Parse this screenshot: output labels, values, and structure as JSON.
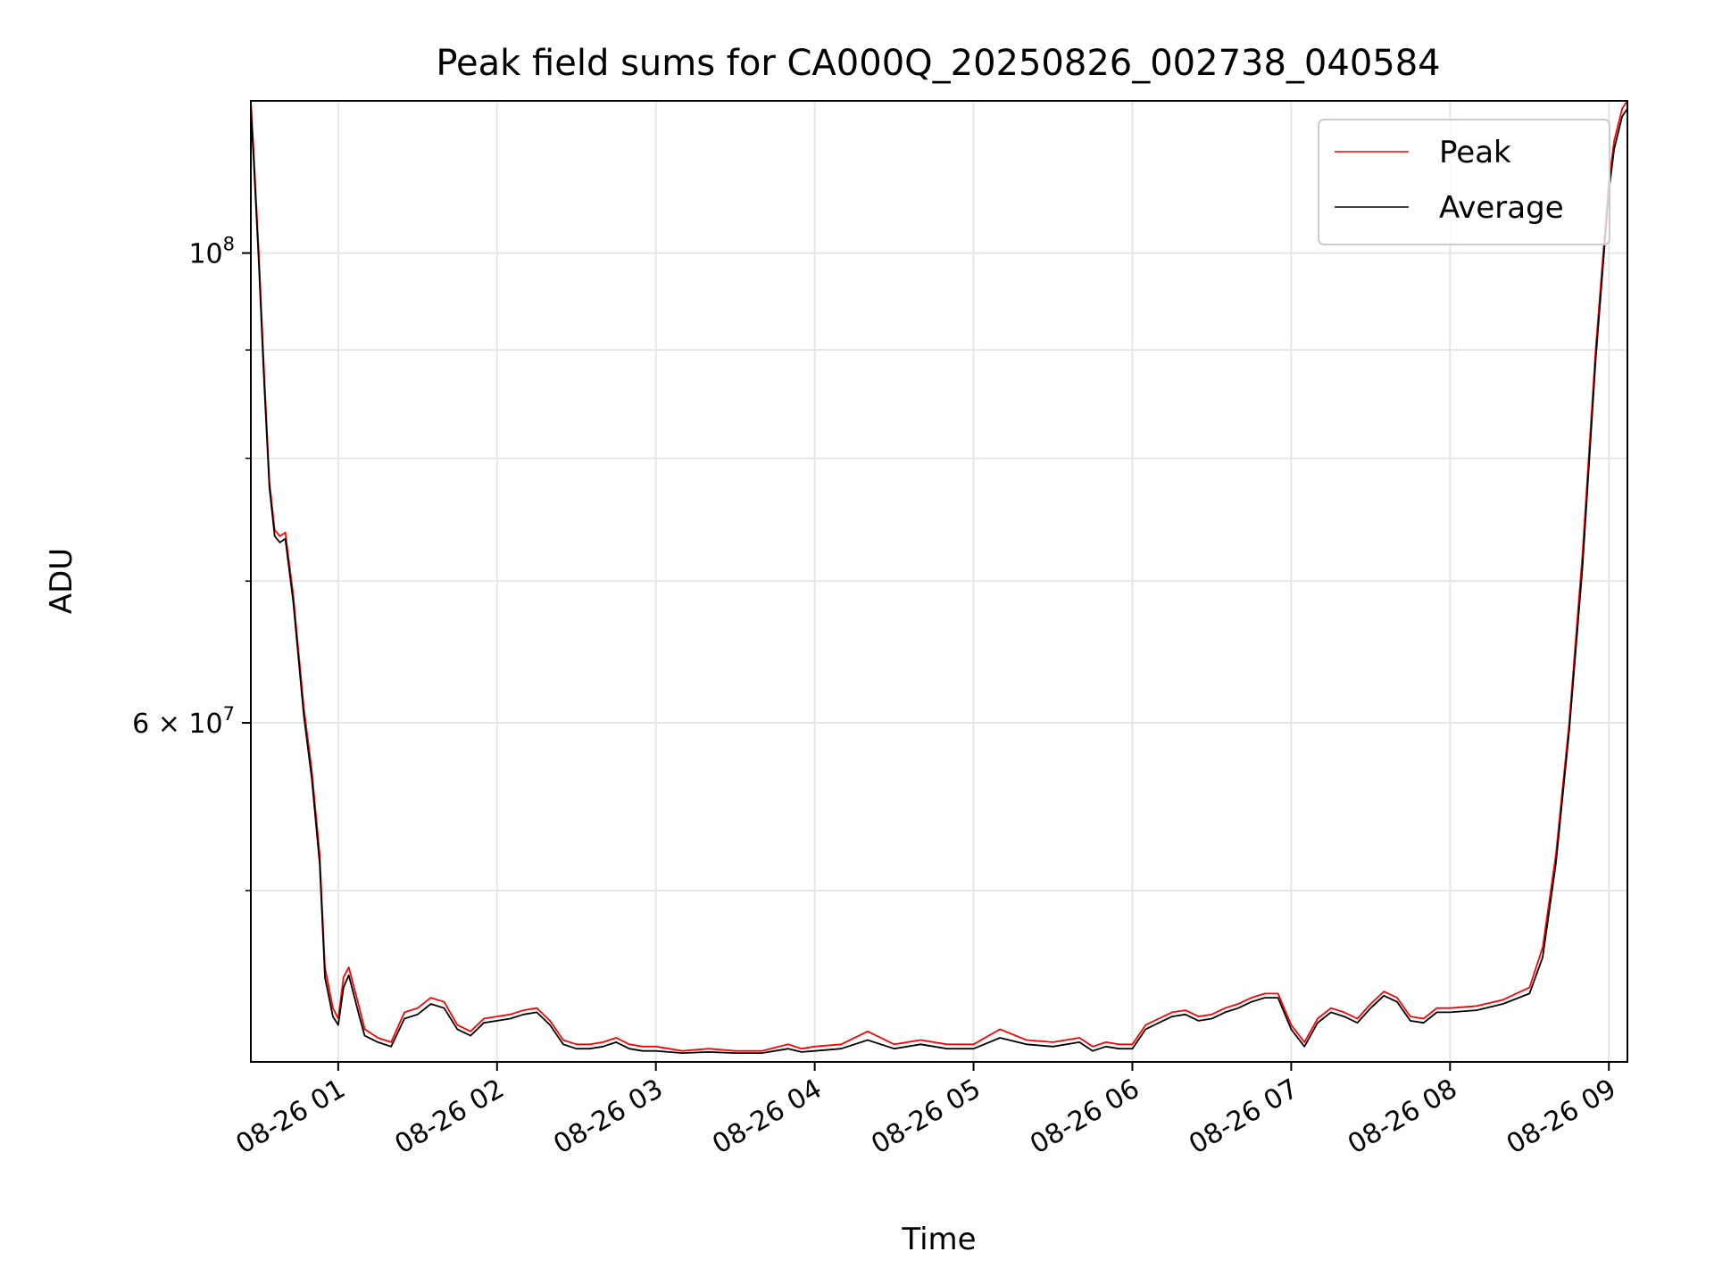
{
  "chart_data": {
    "type": "line",
    "title": "Peak field sums for CA000Q_20250826_002738_040584",
    "xlabel": "Time",
    "ylabel": "ADU",
    "yscale": "log",
    "grid": true,
    "legend_position": "top-right",
    "x_ticks": [
      {
        "value": "2025-08-26 01:00",
        "label": "08-26 01"
      },
      {
        "value": "2025-08-26 02:00",
        "label": "08-26 02"
      },
      {
        "value": "2025-08-26 03:00",
        "label": "08-26 03"
      },
      {
        "value": "2025-08-26 04:00",
        "label": "08-26 04"
      },
      {
        "value": "2025-08-26 05:00",
        "label": "08-26 05"
      },
      {
        "value": "2025-08-26 06:00",
        "label": "08-26 06"
      },
      {
        "value": "2025-08-26 07:00",
        "label": "08-26 07"
      },
      {
        "value": "2025-08-26 08:00",
        "label": "08-26 08"
      },
      {
        "value": "2025-08-26 09:00",
        "label": "08-26 09"
      }
    ],
    "y_major_ticks": [
      {
        "value": 100000000,
        "label_base": "10",
        "label_exp": "8",
        "label_prefix": ""
      },
      {
        "value": 60000000,
        "label_base": "10",
        "label_exp": "7",
        "label_prefix": "6 × "
      }
    ],
    "y_minor_ticks": [
      50000000,
      70000000,
      80000000,
      90000000
    ],
    "ylim": [
      41500000,
      118000000
    ],
    "xlim": [
      "2025-08-26 00:27",
      "2025-08-26 09:07"
    ],
    "series": [
      {
        "name": "Peak",
        "color": "#ff0000",
        "x": [
          "2025-08-26 00:27",
          "2025-08-26 00:28",
          "2025-08-26 00:30",
          "2025-08-26 00:32",
          "2025-08-26 00:34",
          "2025-08-26 00:36",
          "2025-08-26 00:38",
          "2025-08-26 00:40",
          "2025-08-26 00:43",
          "2025-08-26 00:47",
          "2025-08-26 00:50",
          "2025-08-26 00:53",
          "2025-08-26 00:55",
          "2025-08-26 00:58",
          "2025-08-26 01:00",
          "2025-08-26 01:02",
          "2025-08-26 01:04",
          "2025-08-26 01:06",
          "2025-08-26 01:08",
          "2025-08-26 01:10",
          "2025-08-26 01:15",
          "2025-08-26 01:20",
          "2025-08-26 01:25",
          "2025-08-26 01:30",
          "2025-08-26 01:35",
          "2025-08-26 01:40",
          "2025-08-26 01:45",
          "2025-08-26 01:50",
          "2025-08-26 01:55",
          "2025-08-26 02:00",
          "2025-08-26 02:05",
          "2025-08-26 02:10",
          "2025-08-26 02:15",
          "2025-08-26 02:20",
          "2025-08-26 02:25",
          "2025-08-26 02:30",
          "2025-08-26 02:35",
          "2025-08-26 02:40",
          "2025-08-26 02:45",
          "2025-08-26 02:50",
          "2025-08-26 02:55",
          "2025-08-26 03:00",
          "2025-08-26 03:05",
          "2025-08-26 03:10",
          "2025-08-26 03:20",
          "2025-08-26 03:30",
          "2025-08-26 03:40",
          "2025-08-26 03:50",
          "2025-08-26 03:55",
          "2025-08-26 04:00",
          "2025-08-26 04:10",
          "2025-08-26 04:20",
          "2025-08-26 04:30",
          "2025-08-26 04:40",
          "2025-08-26 04:50",
          "2025-08-26 05:00",
          "2025-08-26 05:10",
          "2025-08-26 05:20",
          "2025-08-26 05:30",
          "2025-08-26 05:40",
          "2025-08-26 05:45",
          "2025-08-26 05:50",
          "2025-08-26 05:55",
          "2025-08-26 06:00",
          "2025-08-26 06:05",
          "2025-08-26 06:10",
          "2025-08-26 06:15",
          "2025-08-26 06:20",
          "2025-08-26 06:25",
          "2025-08-26 06:30",
          "2025-08-26 06:35",
          "2025-08-26 06:40",
          "2025-08-26 06:45",
          "2025-08-26 06:50",
          "2025-08-26 06:55",
          "2025-08-26 07:00",
          "2025-08-26 07:05",
          "2025-08-26 07:10",
          "2025-08-26 07:15",
          "2025-08-26 07:20",
          "2025-08-26 07:25",
          "2025-08-26 07:30",
          "2025-08-26 07:35",
          "2025-08-26 07:40",
          "2025-08-26 07:45",
          "2025-08-26 07:50",
          "2025-08-26 07:55",
          "2025-08-26 08:00",
          "2025-08-26 08:10",
          "2025-08-26 08:20",
          "2025-08-26 08:30",
          "2025-08-26 08:35",
          "2025-08-26 08:40",
          "2025-08-26 08:45",
          "2025-08-26 08:50",
          "2025-08-26 08:55",
          "2025-08-26 09:00",
          "2025-08-26 09:02",
          "2025-08-26 09:05",
          "2025-08-26 09:07"
        ],
        "y": [
          118000000,
          112000000,
          100000000,
          88000000,
          78000000,
          74000000,
          73500000,
          73800000,
          69000000,
          61000000,
          57000000,
          52000000,
          46000000,
          44000000,
          43500000,
          45500000,
          46000000,
          45000000,
          44000000,
          43000000,
          42600000,
          42400000,
          43800000,
          44000000,
          44500000,
          44300000,
          43200000,
          42900000,
          43500000,
          43600000,
          43700000,
          43900000,
          44000000,
          43400000,
          42500000,
          42300000,
          42300000,
          42400000,
          42600000,
          42300000,
          42200000,
          42200000,
          42100000,
          42000000,
          42100000,
          42000000,
          42000000,
          42300000,
          42100000,
          42200000,
          42300000,
          42900000,
          42300000,
          42500000,
          42300000,
          42300000,
          43000000,
          42500000,
          42400000,
          42600000,
          42200000,
          42400000,
          42300000,
          42300000,
          43200000,
          43500000,
          43800000,
          43900000,
          43600000,
          43700000,
          44000000,
          44200000,
          44500000,
          44700000,
          44700000,
          43200000,
          42400000,
          43500000,
          44000000,
          43800000,
          43500000,
          44200000,
          44800000,
          44500000,
          43600000,
          43500000,
          44000000,
          44000000,
          44100000,
          44400000,
          45000000,
          47000000,
          52000000,
          60000000,
          72000000,
          90000000,
          108000000,
          113000000,
          117000000,
          118000000
        ]
      },
      {
        "name": "Average",
        "color": "#000000",
        "x": [
          "2025-08-26 00:27",
          "2025-08-26 00:28",
          "2025-08-26 00:30",
          "2025-08-26 00:32",
          "2025-08-26 00:34",
          "2025-08-26 00:36",
          "2025-08-26 00:38",
          "2025-08-26 00:40",
          "2025-08-26 00:43",
          "2025-08-26 00:47",
          "2025-08-26 00:50",
          "2025-08-26 00:53",
          "2025-08-26 00:55",
          "2025-08-26 00:58",
          "2025-08-26 01:00",
          "2025-08-26 01:02",
          "2025-08-26 01:04",
          "2025-08-26 01:06",
          "2025-08-26 01:08",
          "2025-08-26 01:10",
          "2025-08-26 01:15",
          "2025-08-26 01:20",
          "2025-08-26 01:25",
          "2025-08-26 01:30",
          "2025-08-26 01:35",
          "2025-08-26 01:40",
          "2025-08-26 01:45",
          "2025-08-26 01:50",
          "2025-08-26 01:55",
          "2025-08-26 02:00",
          "2025-08-26 02:05",
          "2025-08-26 02:10",
          "2025-08-26 02:15",
          "2025-08-26 02:20",
          "2025-08-26 02:25",
          "2025-08-26 02:30",
          "2025-08-26 02:35",
          "2025-08-26 02:40",
          "2025-08-26 02:45",
          "2025-08-26 02:50",
          "2025-08-26 02:55",
          "2025-08-26 03:00",
          "2025-08-26 03:05",
          "2025-08-26 03:10",
          "2025-08-26 03:20",
          "2025-08-26 03:30",
          "2025-08-26 03:40",
          "2025-08-26 03:50",
          "2025-08-26 03:55",
          "2025-08-26 04:00",
          "2025-08-26 04:10",
          "2025-08-26 04:20",
          "2025-08-26 04:30",
          "2025-08-26 04:40",
          "2025-08-26 04:50",
          "2025-08-26 05:00",
          "2025-08-26 05:10",
          "2025-08-26 05:20",
          "2025-08-26 05:30",
          "2025-08-26 05:40",
          "2025-08-26 05:45",
          "2025-08-26 05:50",
          "2025-08-26 05:55",
          "2025-08-26 06:00",
          "2025-08-26 06:05",
          "2025-08-26 06:10",
          "2025-08-26 06:15",
          "2025-08-26 06:20",
          "2025-08-26 06:25",
          "2025-08-26 06:30",
          "2025-08-26 06:35",
          "2025-08-26 06:40",
          "2025-08-26 06:45",
          "2025-08-26 06:50",
          "2025-08-26 06:55",
          "2025-08-26 07:00",
          "2025-08-26 07:05",
          "2025-08-26 07:10",
          "2025-08-26 07:15",
          "2025-08-26 07:20",
          "2025-08-26 07:25",
          "2025-08-26 07:30",
          "2025-08-26 07:35",
          "2025-08-26 07:40",
          "2025-08-26 07:45",
          "2025-08-26 07:50",
          "2025-08-26 07:55",
          "2025-08-26 08:00",
          "2025-08-26 08:10",
          "2025-08-26 08:20",
          "2025-08-26 08:30",
          "2025-08-26 08:35",
          "2025-08-26 08:40",
          "2025-08-26 08:45",
          "2025-08-26 08:50",
          "2025-08-26 08:55",
          "2025-08-26 09:00",
          "2025-08-26 09:02",
          "2025-08-26 09:05",
          "2025-08-26 09:07"
        ],
        "y": [
          117000000,
          111000000,
          99000000,
          87000000,
          77500000,
          73500000,
          73000000,
          73300000,
          68500000,
          60500000,
          56500000,
          51500000,
          45500000,
          43600000,
          43200000,
          45000000,
          45600000,
          44600000,
          43600000,
          42700000,
          42400000,
          42200000,
          43500000,
          43700000,
          44200000,
          44000000,
          43000000,
          42700000,
          43300000,
          43400000,
          43500000,
          43700000,
          43800000,
          43200000,
          42300000,
          42100000,
          42100000,
          42200000,
          42400000,
          42100000,
          42000000,
          42000000,
          41950000,
          41900000,
          41950000,
          41900000,
          41900000,
          42100000,
          41950000,
          42000000,
          42100000,
          42500000,
          42100000,
          42300000,
          42100000,
          42100000,
          42600000,
          42300000,
          42200000,
          42400000,
          42000000,
          42200000,
          42100000,
          42100000,
          43000000,
          43300000,
          43600000,
          43700000,
          43400000,
          43500000,
          43800000,
          44000000,
          44300000,
          44500000,
          44500000,
          43000000,
          42200000,
          43300000,
          43800000,
          43600000,
          43300000,
          44000000,
          44600000,
          44300000,
          43400000,
          43300000,
          43800000,
          43800000,
          43900000,
          44200000,
          44700000,
          46500000,
          51500000,
          59500000,
          71000000,
          89000000,
          107000000,
          112000000,
          116000000,
          117000000
        ]
      }
    ]
  }
}
